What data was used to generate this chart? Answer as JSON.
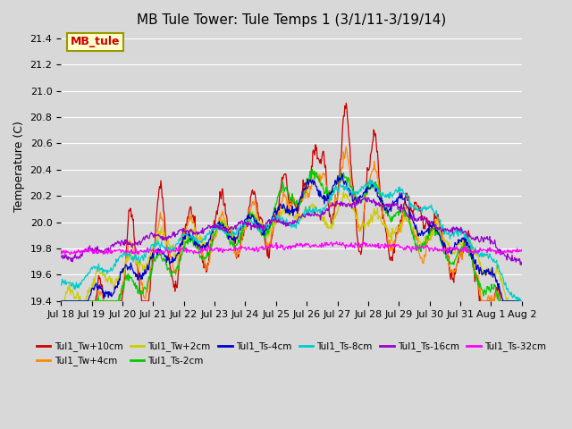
{
  "title": "MB Tule Tower: Tule Temps 1 (3/1/11-3/19/14)",
  "ylabel": "Temperature (C)",
  "background_color": "#d8d8d8",
  "legend_box_color": "#ffffcc",
  "legend_box_edge": "#999900",
  "series_names": [
    "Tul1_Tw+10cm",
    "Tul1_Tw+4cm",
    "Tul1_Tw+2cm",
    "Tul1_Ts-2cm",
    "Tul1_Ts-4cm",
    "Tul1_Ts-8cm",
    "Tul1_Ts-16cm",
    "Tul1_Ts-32cm"
  ],
  "series_colors": [
    "#cc0000",
    "#ff8800",
    "#cccc00",
    "#00cc00",
    "#0000cc",
    "#00cccc",
    "#9900cc",
    "#ff00ff"
  ],
  "ylim": [
    19.4,
    21.45
  ],
  "yticks": [
    19.4,
    19.6,
    19.8,
    20.0,
    20.2,
    20.4,
    20.6,
    20.8,
    21.0,
    21.2,
    21.4
  ],
  "xtick_labels": [
    "Jul 18",
    "Jul 19",
    "Jul 20",
    "Jul 21",
    "Jul 22",
    "Jul 23",
    "Jul 24",
    "Jul 25",
    "Jul 26",
    "Jul 27",
    "Jul 28",
    "Jul 29",
    "Jul 30",
    "Jul 31",
    "Aug 1",
    "Aug 2"
  ],
  "n_days": 15,
  "pts_per_day": 48,
  "annotation_text": "MB_tule",
  "annotation_color": "#cc0000"
}
